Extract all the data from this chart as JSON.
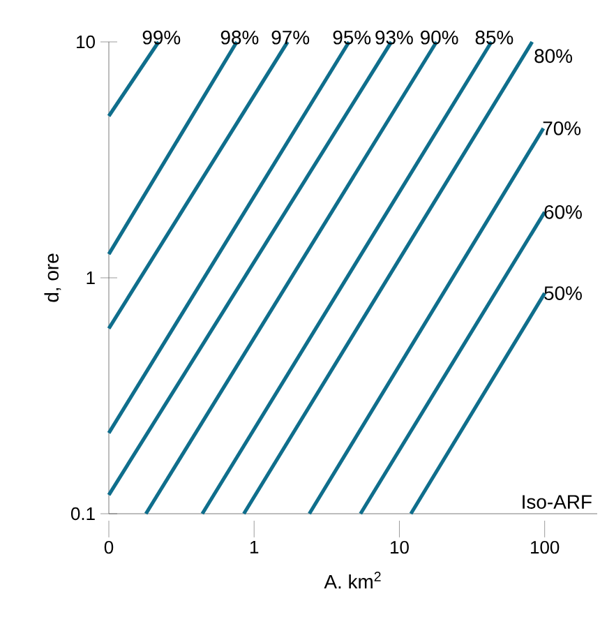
{
  "chart_data": {
    "type": "line",
    "xlabel": "A. km$^{2}$",
    "ylabel": "d, ore",
    "log": "xy",
    "marker": "none",
    "line_style": "solid",
    "grid": false,
    "xlim": [
      0.1,
      230
    ],
    "ylim": [
      0.1,
      10
    ],
    "xticks": [
      {
        "value": 0.1,
        "label": "0"
      },
      1,
      10,
      100
    ],
    "yticks": [
      0.1,
      1,
      10
    ],
    "annotations": [
      "Iso-ARF"
    ],
    "series": [
      {
        "name": "99%",
        "color": "#0f6e8c",
        "x": [
          0.1,
          0.22
        ],
        "values": [
          4.85,
          10
        ]
      },
      {
        "name": "98%",
        "color": "#0f6e8c",
        "x": [
          0.1,
          0.76
        ],
        "values": [
          1.26,
          10
        ]
      },
      {
        "name": "97%",
        "color": "#0f6e8c",
        "x": [
          0.1,
          1.7
        ],
        "values": [
          0.61,
          10
        ]
      },
      {
        "name": "95%",
        "color": "#0f6e8c",
        "x": [
          0.1,
          4.5
        ],
        "values": [
          0.22,
          10
        ]
      },
      {
        "name": "93%",
        "color": "#0f6e8c",
        "x": [
          0.1,
          8.8
        ],
        "values": [
          0.12,
          10
        ]
      },
      {
        "name": "90%",
        "color": "#0f6e8c",
        "x": [
          0.18,
          18
        ],
        "values": [
          0.1,
          10
        ]
      },
      {
        "name": "85%",
        "color": "#0f6e8c",
        "x": [
          0.44,
          43
        ],
        "values": [
          0.1,
          10
        ]
      },
      {
        "name": "80%",
        "color": "#0f6e8c",
        "x": [
          0.85,
          82
        ],
        "values": [
          0.1,
          10
        ]
      },
      {
        "name": "70%",
        "color": "#0f6e8c",
        "x": [
          2.4,
          98
        ],
        "values": [
          0.1,
          4.3
        ]
      },
      {
        "name": "60%",
        "color": "#0f6e8c",
        "x": [
          5.4,
          100
        ],
        "values": [
          0.1,
          1.9
        ]
      },
      {
        "name": "50%",
        "color": "#0f6e8c",
        "x": [
          12,
          100
        ],
        "values": [
          0.1,
          0.86
        ]
      }
    ]
  }
}
